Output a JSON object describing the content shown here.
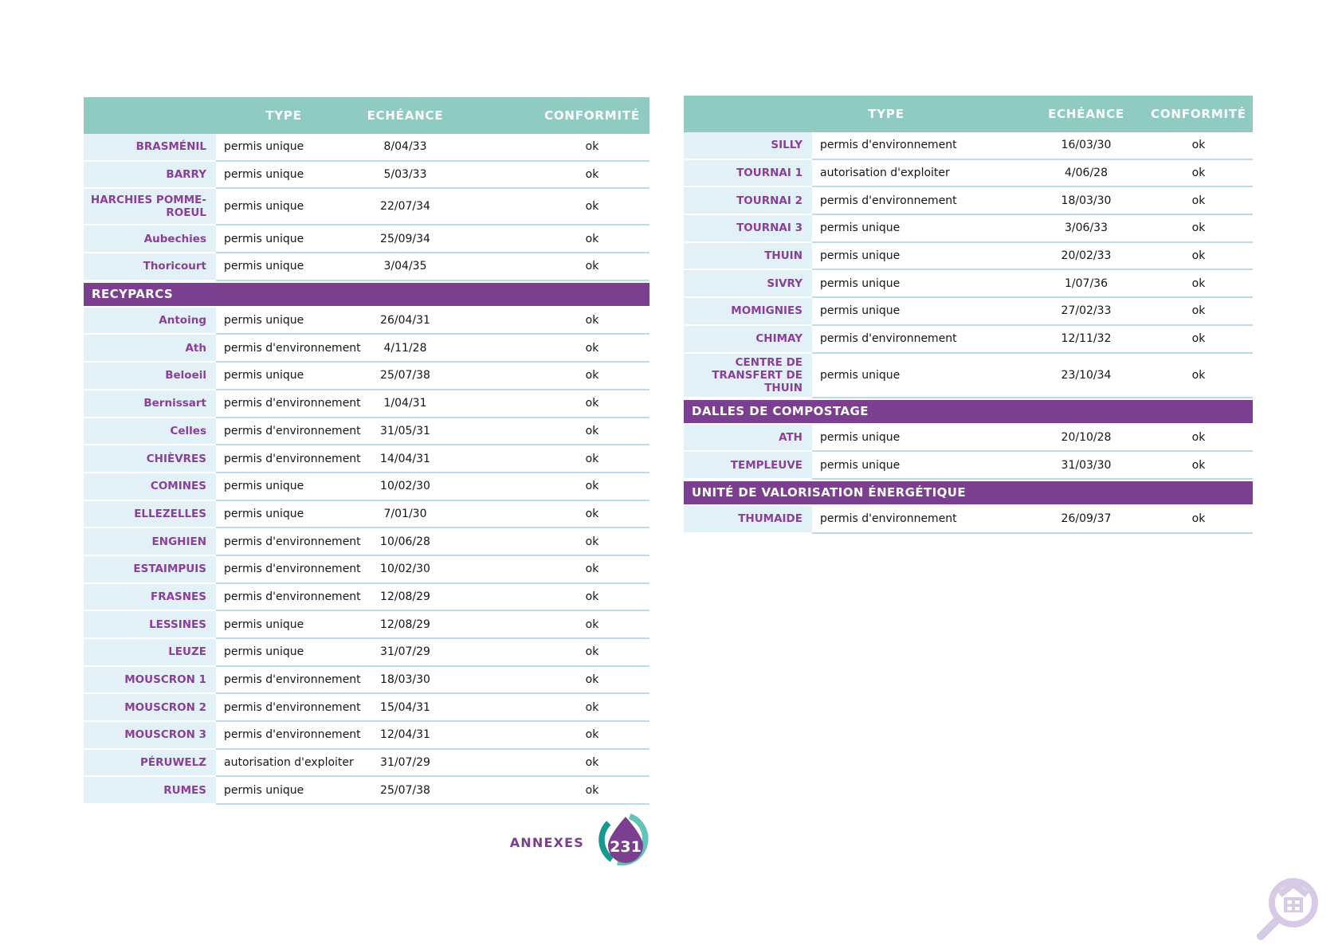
{
  "colors": {
    "teal": "#8FCBC2",
    "purple": "#7C3E8F",
    "label_purple": "#8A3F9B",
    "light_blue": "#E2F1F8",
    "separator": "#B8DCEC",
    "badge_dark_teal": "#18998C",
    "badge_light_teal": "#62C4B8",
    "magnifier_lavender": "#D7CAE6"
  },
  "left_table": {
    "columns": {
      "type": "TYPE",
      "echeance": "ECHÉANCE",
      "conformite": "CONFORMITÉ"
    },
    "sections": [
      {
        "title": "",
        "rows": [
          {
            "name": "BRASMÉNIL",
            "type": "permis unique",
            "echeance": "8/04/33",
            "conformite": "ok"
          },
          {
            "name": "BARRY",
            "type": "permis unique",
            "echeance": "5/03/33",
            "conformite": "ok"
          },
          {
            "name": "HARCHIES POMME-ROEUL",
            "type": "permis unique",
            "echeance": "22/07/34",
            "conformite": "ok"
          },
          {
            "name": "Aubechies",
            "type": "permis unique",
            "echeance": "25/09/34",
            "conformite": "ok"
          },
          {
            "name": "Thoricourt",
            "type": "permis unique",
            "echeance": "3/04/35",
            "conformite": "ok"
          }
        ]
      },
      {
        "title": "RECYPARCS",
        "rows": [
          {
            "name": "Antoing",
            "type": "permis unique",
            "echeance": "26/04/31",
            "conformite": "ok"
          },
          {
            "name": "Ath",
            "type": "permis d'environnement",
            "echeance": "4/11/28",
            "conformite": "ok"
          },
          {
            "name": "Beloeil",
            "type": "permis unique",
            "echeance": "25/07/38",
            "conformite": "ok"
          },
          {
            "name": "Bernissart",
            "type": "permis d'environnement",
            "echeance": "1/04/31",
            "conformite": "ok"
          },
          {
            "name": "Celles",
            "type": "permis d'environnement",
            "echeance": "31/05/31",
            "conformite": "ok"
          },
          {
            "name": "CHIÈVRES",
            "type": "permis d'environnement",
            "echeance": "14/04/31",
            "conformite": "ok"
          },
          {
            "name": "COMINES",
            "type": "permis unique",
            "echeance": "10/02/30",
            "conformite": "ok"
          },
          {
            "name": "ELLEZELLES",
            "type": "permis unique",
            "echeance": "7/01/30",
            "conformite": "ok"
          },
          {
            "name": "ENGHIEN",
            "type": "permis d'environnement",
            "echeance": "10/06/28",
            "conformite": "ok"
          },
          {
            "name": "ESTAIMPUIS",
            "type": "permis d'environnement",
            "echeance": "10/02/30",
            "conformite": "ok"
          },
          {
            "name": "FRASNES",
            "type": "permis d'environnement",
            "echeance": "12/08/29",
            "conformite": "ok"
          },
          {
            "name": "LESSINES",
            "type": "permis unique",
            "echeance": "12/08/29",
            "conformite": "ok"
          },
          {
            "name": "LEUZE",
            "type": "permis unique",
            "echeance": "31/07/29",
            "conformite": "ok"
          },
          {
            "name": "MOUSCRON 1",
            "type": "permis d'environnement",
            "echeance": "18/03/30",
            "conformite": "ok"
          },
          {
            "name": "MOUSCRON 2",
            "type": "permis d'environnement",
            "echeance": "15/04/31",
            "conformite": "ok"
          },
          {
            "name": "MOUSCRON 3",
            "type": "permis d'environnement",
            "echeance": "12/04/31",
            "conformite": "ok"
          },
          {
            "name": "PÉRUWELZ",
            "type": "autorisation d'exploiter",
            "echeance": "31/07/29",
            "conformite": "ok"
          },
          {
            "name": "RUMES",
            "type": "permis unique",
            "echeance": "25/07/38",
            "conformite": "ok"
          }
        ]
      }
    ]
  },
  "right_table": {
    "columns": {
      "type": "TYPE",
      "echeance": "ECHÉANCE",
      "conformite": "CONFORMITÉ"
    },
    "sections": [
      {
        "title": "",
        "rows": [
          {
            "name": "SILLY",
            "type": "permis d'environnement",
            "echeance": "16/03/30",
            "conformite": "ok"
          },
          {
            "name": "TOURNAI 1",
            "type": "autorisation d'exploiter",
            "echeance": "4/06/28",
            "conformite": "ok"
          },
          {
            "name": "TOURNAI 2",
            "type": "permis d'environnement",
            "echeance": "18/03/30",
            "conformite": "ok"
          },
          {
            "name": "TOURNAI 3",
            "type": "permis unique",
            "echeance": "3/06/33",
            "conformite": "ok"
          },
          {
            "name": "THUIN",
            "type": "permis unique",
            "echeance": "20/02/33",
            "conformite": "ok"
          },
          {
            "name": "SIVRY",
            "type": "permis unique",
            "echeance": "1/07/36",
            "conformite": "ok"
          },
          {
            "name": "MOMIGNIES",
            "type": "permis unique",
            "echeance": "27/02/33",
            "conformite": "ok"
          },
          {
            "name": "CHIMAY",
            "type": "permis d'environnement",
            "echeance": "12/11/32",
            "conformite": "ok"
          },
          {
            "name": "CENTRE DE TRANSFERT DE THUIN",
            "type": "permis unique",
            "echeance": "23/10/34",
            "conformite": "ok"
          }
        ]
      },
      {
        "title": "DALLES DE COMPOSTAGE",
        "rows": [
          {
            "name": "ATH",
            "type": "permis unique",
            "echeance": "20/10/28",
            "conformite": "ok"
          },
          {
            "name": "TEMPLEUVE",
            "type": "permis unique",
            "echeance": "31/03/30",
            "conformite": "ok"
          }
        ]
      },
      {
        "title": "UNITÉ DE VALORISATION ÉNERGÉTIQUE",
        "rows": [
          {
            "name": "THUMAIDE",
            "type": "permis d'environnement",
            "echeance": "26/09/37",
            "conformite": "ok"
          }
        ]
      }
    ]
  },
  "footer": {
    "label": "ANNEXES",
    "page_number": "231"
  },
  "icons": {
    "badge": "recycle-drop-page-badge",
    "magnifier": "house-search-icon"
  }
}
